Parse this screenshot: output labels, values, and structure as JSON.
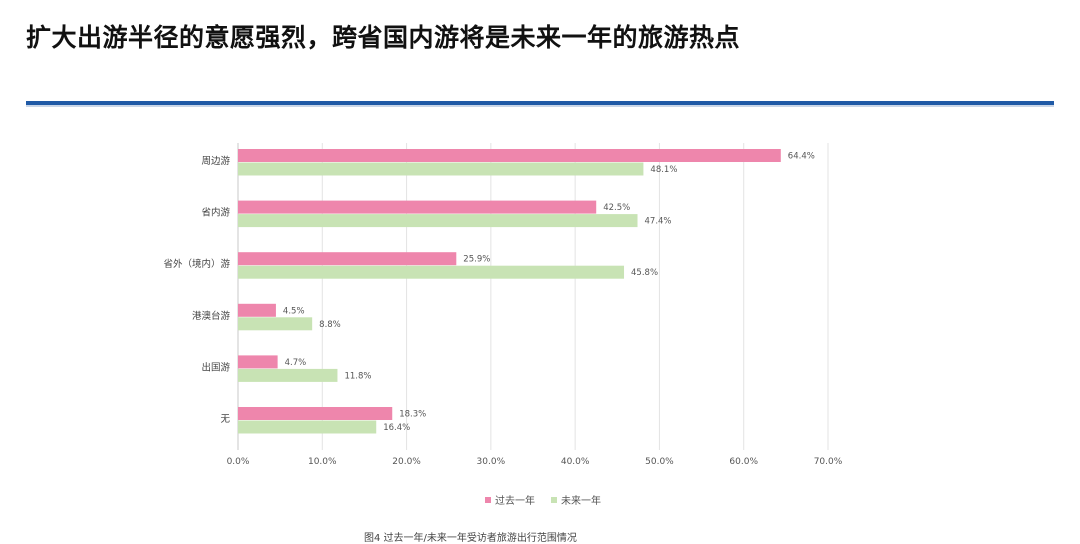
{
  "title": "扩大出游半径的意愿强烈，跨省国内游将是未来一年的旅游热点",
  "caption": "图4 过去一年/未来一年受访者旅游出行范围情况",
  "colors": {
    "accent_rule": "#1f5aa6",
    "past_year": "#ee86ac",
    "next_year": "#c8e3b4"
  },
  "chart_data": {
    "type": "bar",
    "orientation": "horizontal",
    "categories": [
      "周边游",
      "省内游",
      "省外（境内）游",
      "港澳台游",
      "出国游",
      "无"
    ],
    "series": [
      {
        "name": "过去一年",
        "values": [
          64.4,
          42.5,
          25.9,
          4.5,
          4.7,
          18.3
        ],
        "labels": [
          "64.4%",
          "42.5%",
          "25.9%",
          "4.5%",
          "4.7%",
          "18.3%"
        ]
      },
      {
        "name": "未来一年",
        "values": [
          48.1,
          47.4,
          45.8,
          8.8,
          11.8,
          16.4
        ],
        "labels": [
          "48.1%",
          "47.4%",
          "45.8%",
          "8.8%",
          "11.8%",
          "16.4%"
        ]
      }
    ],
    "xlim": [
      0,
      70
    ],
    "x_ticks": [
      "0.0%",
      "10.0%",
      "20.0%",
      "30.0%",
      "40.0%",
      "50.0%",
      "60.0%",
      "70.0%"
    ],
    "grid": "vertical",
    "legend_position": "bottom"
  }
}
